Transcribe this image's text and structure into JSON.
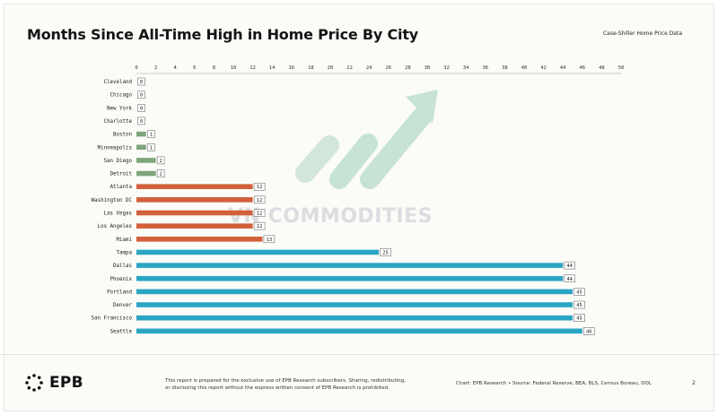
{
  "header": {
    "title": "Months Since All-Time High in Home Price By City",
    "source_note": "Case-Shiller Home Price Data"
  },
  "watermark": {
    "text": "VN COMMODITIES"
  },
  "footer": {
    "logo_text": "EPB",
    "disclaimer_line1": "This report is prepared for the exclusive use of EPB Research subscribers. Sharing, redistributing,",
    "disclaimer_line2": "or disclosing this report without the express written consent of EPB Research is prohibited.",
    "credits": "Chart: EPB Research  •  Source: Federal Reserve, BEA, BLS, Census Bureau, DOL",
    "page_number": "2"
  },
  "colors": {
    "green": "#7ea57b",
    "orange": "#d2603a",
    "blue": "#2ba5c4"
  },
  "chart_data": {
    "type": "bar",
    "orientation": "horizontal",
    "title": "Months Since All-Time High in Home Price By City",
    "xlim": [
      0,
      50
    ],
    "x_ticks": [
      0,
      2,
      4,
      6,
      8,
      10,
      12,
      14,
      16,
      18,
      20,
      22,
      24,
      26,
      28,
      30,
      32,
      34,
      36,
      38,
      40,
      42,
      44,
      46,
      48,
      50
    ],
    "x_axis_position": "top",
    "grid": false,
    "data_labels": true,
    "categories": [
      "Cleveland",
      "Chicago",
      "New York",
      "Charlotte",
      "Boston",
      "Minneapolis",
      "San Diego",
      "Detroit",
      "Atlanta",
      "Washington DC",
      "Las Vegas",
      "Los Angeles",
      "Miami",
      "Tampa",
      "Dallas",
      "Phoenix",
      "Portland",
      "Denver",
      "San Francisco",
      "Seattle"
    ],
    "values": [
      0,
      0,
      0,
      0,
      1,
      1,
      2,
      2,
      12,
      12,
      12,
      12,
      13,
      25,
      44,
      44,
      45,
      45,
      45,
      46
    ],
    "groups": [
      "green",
      "green",
      "green",
      "green",
      "green",
      "green",
      "green",
      "green",
      "orange",
      "orange",
      "orange",
      "orange",
      "orange",
      "blue",
      "blue",
      "blue",
      "blue",
      "blue",
      "blue",
      "blue"
    ]
  }
}
